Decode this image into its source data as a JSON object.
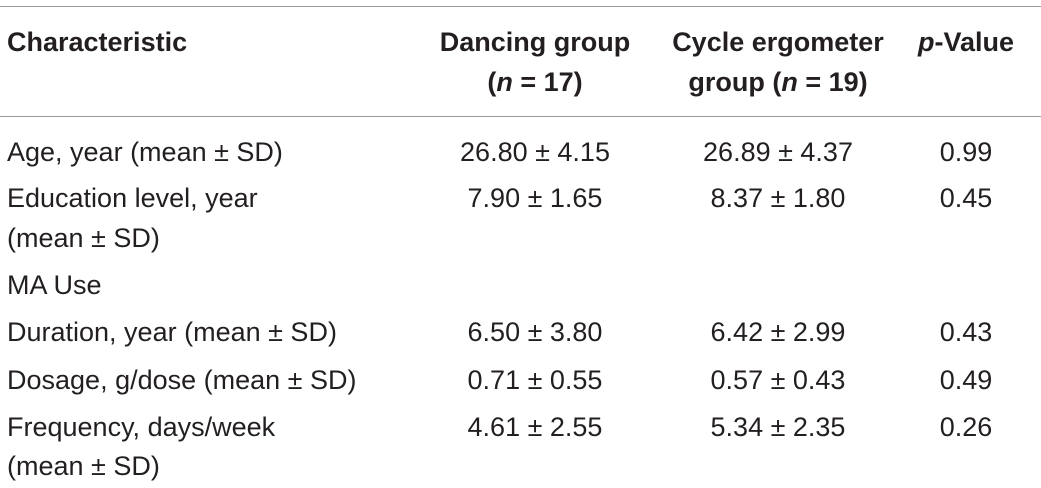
{
  "table": {
    "headers": {
      "characteristic": "Characteristic",
      "dancing_line1": "Dancing group",
      "dancing_n_open": "(",
      "dancing_n_var": "n",
      "dancing_n_rest": " = 17)",
      "cycle_line1": "Cycle ergometer",
      "cycle_n_open": "group (",
      "cycle_n_var": "n",
      "cycle_n_rest": " = 19)",
      "p_var": "p",
      "p_rest": "-Value"
    },
    "rows": [
      {
        "label": "Age, year (mean ± SD)",
        "label2": "",
        "dancing": "26.80 ± 4.15",
        "cycle": "26.89 ± 4.37",
        "p": "0.99"
      },
      {
        "label": "Education level, year",
        "label2": "(mean ± SD)",
        "dancing": "7.90 ± 1.65",
        "cycle": "8.37 ± 1.80",
        "p": "0.45"
      },
      {
        "label": "MA Use",
        "label2": "",
        "dancing": "",
        "cycle": "",
        "p": ""
      },
      {
        "label": "Duration, year (mean ± SD)",
        "label2": "",
        "dancing": "6.50 ± 3.80",
        "cycle": "6.42 ± 2.99",
        "p": "0.43"
      },
      {
        "label": "Dosage, g/dose (mean ± SD)",
        "label2": "",
        "dancing": "0.71 ± 0.55",
        "cycle": "0.57 ± 0.43",
        "p": "0.49"
      },
      {
        "label": "Frequency, days/week",
        "label2": "(mean ± SD)",
        "dancing": "4.61 ± 2.55",
        "cycle": "5.34 ± 2.35",
        "p": "0.26"
      }
    ]
  }
}
